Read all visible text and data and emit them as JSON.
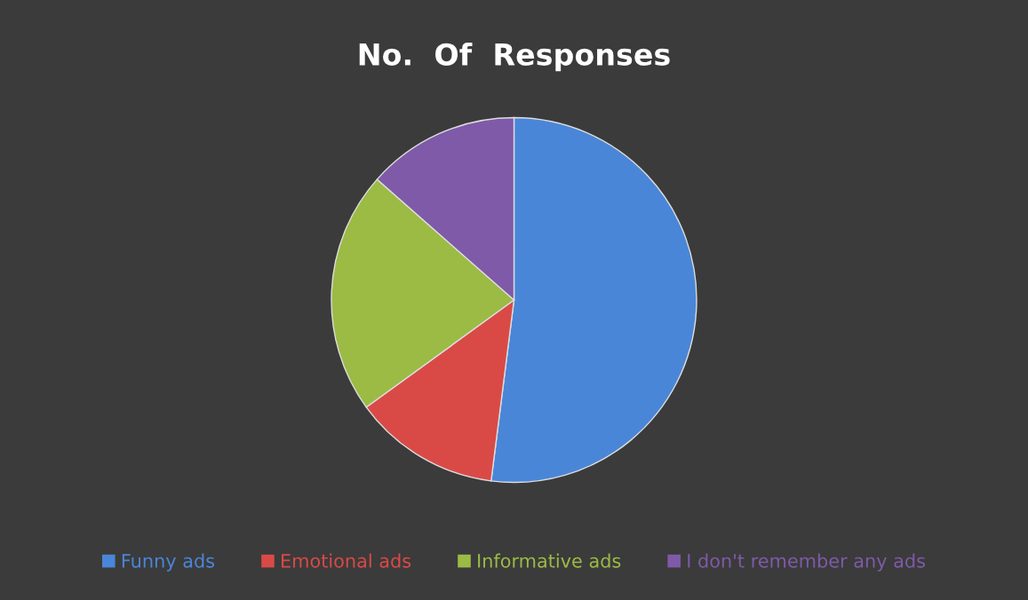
{
  "chart_data": {
    "type": "pie",
    "title": "No.  Of  Responses",
    "categories": [
      "Funny ads",
      "Emotional ads",
      "Informative ads",
      "I don't remember any ads"
    ],
    "values": [
      52,
      13,
      21.5,
      13.5
    ],
    "colors": [
      "#4a86d8",
      "#d94a47",
      "#9bbb45",
      "#7f5aa8"
    ],
    "legend": "bottom"
  }
}
